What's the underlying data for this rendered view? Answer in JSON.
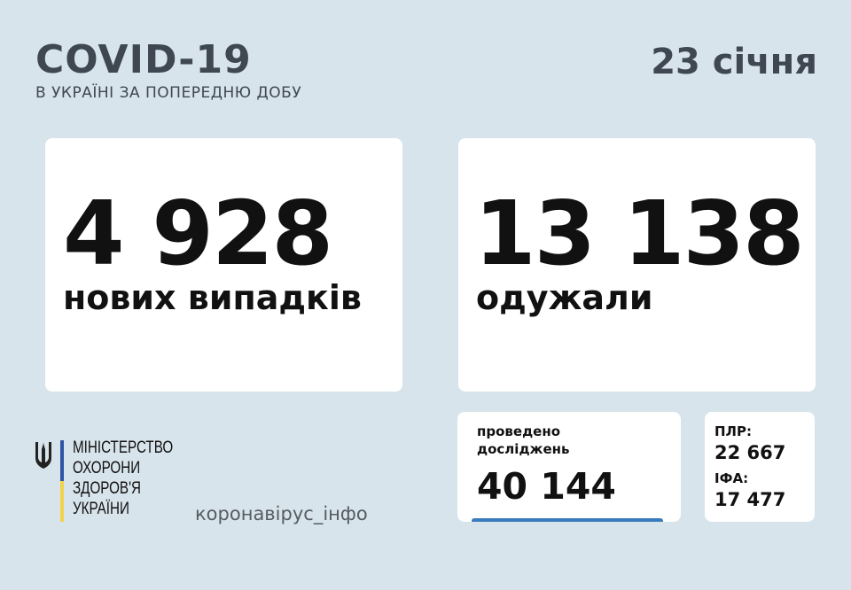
{
  "header": {
    "title": "COVID-19",
    "subtitle": "В УКРАЇНІ ЗА ПОПЕРЕДНЮ ДОБУ",
    "date": "23 січня"
  },
  "new_cases": {
    "value": "4 928",
    "label": "нових випадків"
  },
  "recovered": {
    "value": "13 138",
    "label": "одужали"
  },
  "tests": {
    "label_line1": "проведено",
    "label_line2": "досліджень",
    "value": "40 144",
    "accent_color": "#3a7bbf"
  },
  "test_types": {
    "pcr_label": "ПЛР:",
    "pcr_value": "22 667",
    "ifa_label": "ІФА:",
    "ifa_value": "17 477"
  },
  "footer": {
    "ministry_lines": [
      "МІНІСТЕРСТВО",
      "ОХОРОНИ",
      "ЗДОРОВ'Я",
      "УКРАЇНИ"
    ],
    "site": "коронавірус_інфо",
    "flag_colors": [
      "#2f55a4",
      "#f2d24b"
    ]
  }
}
